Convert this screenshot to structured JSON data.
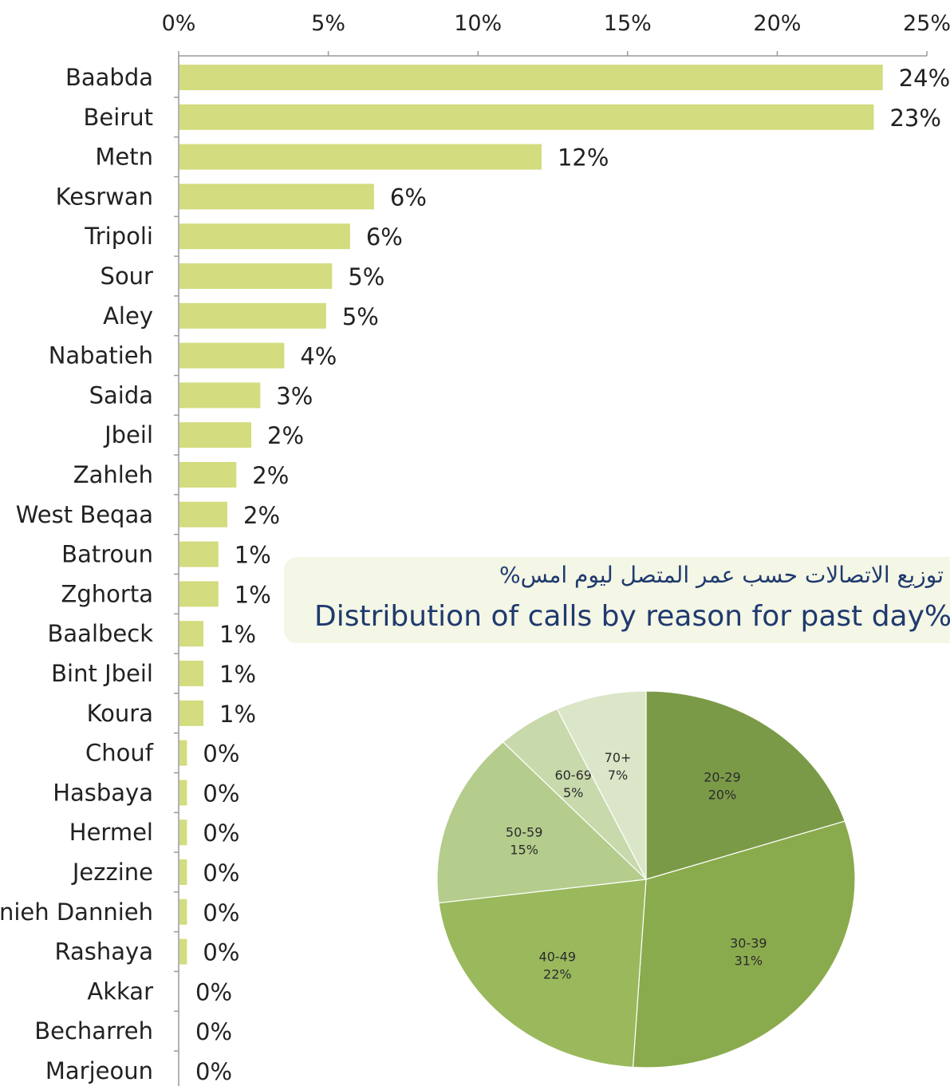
{
  "chart_data": [
    {
      "type": "bar",
      "orientation": "horizontal",
      "categories": [
        "Baabda",
        "Beirut",
        "Metn",
        "Kesrwan",
        "Tripoli",
        "Sour",
        "Aley",
        "Nabatieh",
        "Saida",
        "Jbeil",
        "Zahleh",
        "West Beqaa",
        "Batroun",
        "Zghorta",
        "Baalbeck",
        "Bint Jbeil",
        "Koura",
        "Chouf",
        "Hasbaya",
        "Hermel",
        "Jezzine",
        "nieh Dannieh",
        "Rashaya",
        "Akkar",
        "Becharreh",
        "Marjeoun"
      ],
      "values": [
        23.5,
        23.2,
        12.1,
        6.5,
        5.7,
        5.1,
        4.9,
        3.5,
        2.7,
        2.4,
        1.9,
        1.6,
        1.3,
        1.3,
        0.8,
        0.8,
        0.8,
        0.25,
        0.25,
        0.25,
        0.25,
        0.25,
        0.25,
        0.0,
        0.0,
        0.0
      ],
      "data_labels": [
        "24%",
        "23%",
        "12%",
        "6%",
        "6%",
        "5%",
        "5%",
        "4%",
        "3%",
        "2%",
        "2%",
        "2%",
        "1%",
        "1%",
        "1%",
        "1%",
        "1%",
        "0%",
        "0%",
        "0%",
        "0%",
        "0%",
        "0%",
        "0%",
        "0%",
        "0%"
      ],
      "xlim": [
        0,
        25
      ],
      "xticks": [
        "0%",
        "5%",
        "10%",
        "15%",
        "20%",
        "25%"
      ],
      "x_axis_position": "top",
      "grid": false,
      "bar_color": "#d3dc7e"
    },
    {
      "type": "pie",
      "title_ar": "توزيع الاتصالات حسب عمر المتصل ليوم امس%",
      "title_en": "Distribution of calls by reason for past day%",
      "slices": [
        {
          "label": "20-29",
          "value": 20,
          "value_label": "20%",
          "color": "#7b9a48"
        },
        {
          "label": "30-39",
          "value": 31,
          "value_label": "31%",
          "color": "#8aab4d"
        },
        {
          "label": "40-49",
          "value": 22,
          "value_label": "22%",
          "color": "#99b95c"
        },
        {
          "label": "50-59",
          "value": 15,
          "value_label": "15%",
          "color": "#b4cc8c"
        },
        {
          "label": "60-69",
          "value": 5,
          "value_label": "5%",
          "color": "#c8d9ab"
        },
        {
          "label": "70+",
          "value": 7,
          "value_label": "7%",
          "color": "#dbe6c8"
        }
      ]
    }
  ]
}
